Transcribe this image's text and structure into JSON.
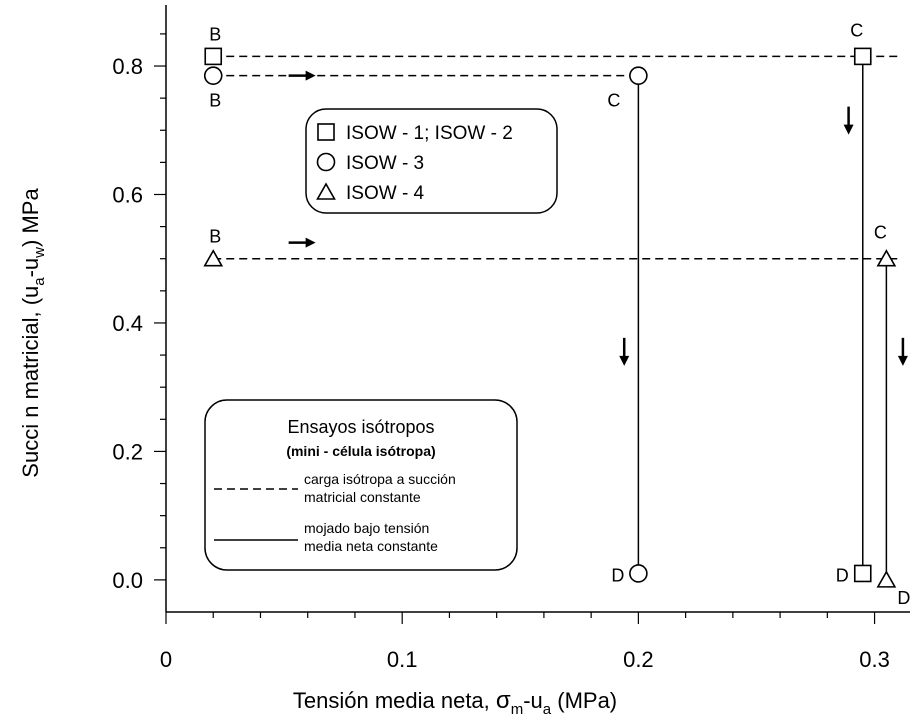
{
  "chart_data": {
    "type": "scatter",
    "title": "",
    "xlabel": {
      "main": "Tensión media neta, ",
      "sigma": "σ",
      "sub1": "m",
      "mid": "-u",
      "sub2": "a",
      "tail": " (MPa)"
    },
    "ylabel": {
      "main": "Succi  n matricial,  (u",
      "sub1": "a",
      "mid": "-u",
      "sub2": "w",
      "tail": ")  MPa"
    },
    "xlim": [
      0,
      0.315
    ],
    "ylim": [
      -0.05,
      0.895
    ],
    "x_ticks": [
      "0",
      "0.1",
      "0.2",
      "0.3"
    ],
    "y_ticks": [
      "0.0",
      "0.2",
      "0.4",
      "0.6",
      "0.8"
    ],
    "series": [
      {
        "name": "ISOW - 1; ISOW - 2",
        "marker": "square",
        "points": [
          {
            "x": 0.02,
            "y": 0.815,
            "label": "B"
          },
          {
            "x": 0.295,
            "y": 0.815,
            "label": "C"
          },
          {
            "x": 0.295,
            "y": 0.01,
            "label": "D"
          }
        ]
      },
      {
        "name": "ISOW - 3",
        "marker": "circle",
        "points": [
          {
            "x": 0.02,
            "y": 0.785,
            "label": "B"
          },
          {
            "x": 0.2,
            "y": 0.785,
            "label": "C"
          },
          {
            "x": 0.2,
            "y": 0.01,
            "label": "D"
          }
        ]
      },
      {
        "name": "ISOW - 4",
        "marker": "triangle",
        "points": [
          {
            "x": 0.02,
            "y": 0.5,
            "label": "B"
          },
          {
            "x": 0.305,
            "y": 0.5,
            "label": "C"
          },
          {
            "x": 0.305,
            "y": 0.0,
            "label": "D"
          }
        ]
      }
    ],
    "paths": [
      {
        "style": "dashed",
        "from": [
          0.02,
          0.815
        ],
        "to": [
          0.31,
          0.815
        ]
      },
      {
        "style": "dashed",
        "from": [
          0.02,
          0.785
        ],
        "to": [
          0.2,
          0.785
        ]
      },
      {
        "style": "dashed",
        "from": [
          0.02,
          0.5
        ],
        "to": [
          0.31,
          0.5
        ]
      },
      {
        "style": "solid",
        "from": [
          0.2,
          0.785
        ],
        "to": [
          0.2,
          0.01
        ]
      },
      {
        "style": "solid",
        "from": [
          0.295,
          0.815
        ],
        "to": [
          0.295,
          0.01
        ]
      },
      {
        "style": "solid",
        "from": [
          0.305,
          0.5
        ],
        "to": [
          0.305,
          0.0
        ]
      }
    ],
    "arrows": [
      {
        "x": 0.057,
        "y": 0.785,
        "direction": "right"
      },
      {
        "x": 0.057,
        "y": 0.525,
        "direction": "right"
      },
      {
        "x": 0.194,
        "y": 0.355,
        "direction": "down"
      },
      {
        "x": 0.289,
        "y": 0.715,
        "direction": "down"
      },
      {
        "x": 0.312,
        "y": 0.355,
        "direction": "down"
      }
    ],
    "legend": {
      "position": "top-center",
      "entries": [
        {
          "marker": "square",
          "text": "ISOW - 1; ISOW - 2"
        },
        {
          "marker": "circle",
          "text": "ISOW - 3"
        },
        {
          "marker": "triangle",
          "text": "ISOW - 4"
        }
      ]
    },
    "key_box": {
      "position": "bottom-left",
      "title": "Ensayos isótropos",
      "subtitle": "(mini - célula isótropa)",
      "entries": [
        {
          "style": "dashed",
          "line1": "carga isótropa a succión",
          "line2": "matricial constante"
        },
        {
          "style": "solid",
          "line1": "mojado bajo tensión",
          "line2": "media neta constante"
        }
      ]
    },
    "grid": false
  }
}
